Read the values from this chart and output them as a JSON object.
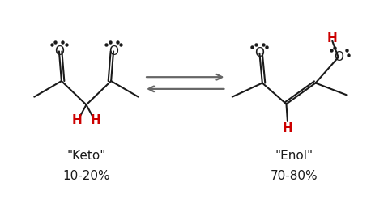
{
  "background_color": "#ffffff",
  "keto_label": "\"Keto\"",
  "keto_percent": "10-20%",
  "enol_label": "\"Enol\"",
  "enol_percent": "70-80%",
  "red_color": "#cc0000",
  "black_color": "#1a1a1a",
  "gray_color": "#666666",
  "font_size_label": 11,
  "font_size_percent": 11
}
